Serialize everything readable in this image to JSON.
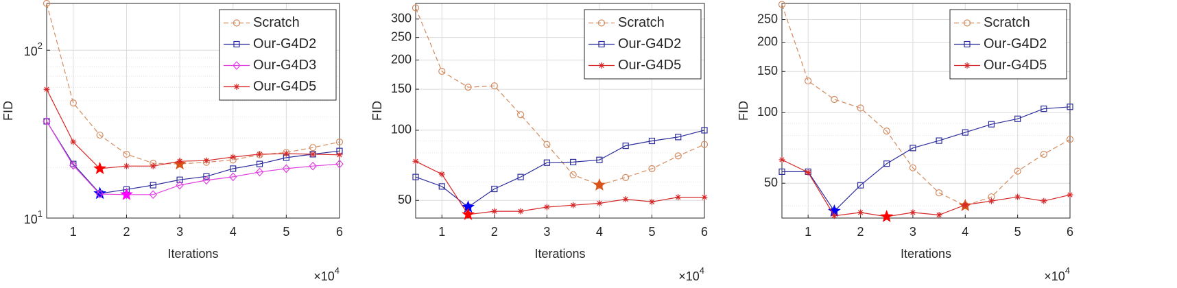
{
  "chart_data": [
    {
      "type": "line",
      "xlabel": "Iterations",
      "ylabel": "FID",
      "x_exponent_label": "×10^4",
      "x": [
        0.5,
        1,
        1.5,
        2,
        2.5,
        3,
        3.5,
        4,
        4.5,
        5,
        5.5,
        6
      ],
      "xlim": [
        0.5,
        6
      ],
      "xticks": [
        1,
        2,
        3,
        4,
        5,
        6
      ],
      "ylim": [
        10,
        190
      ],
      "yticks": [
        {
          "value": 10,
          "label": "10^1"
        },
        {
          "value": 100,
          "label": "10^2"
        }
      ],
      "yscale": "log",
      "grid": true,
      "legend": "upper right",
      "series": [
        {
          "name": "Scratch",
          "color": "#d38a5e",
          "line_style": "dashed",
          "marker": "circle",
          "star_index": 5,
          "star_color": "#d95319",
          "values": [
            190,
            48.5,
            31.2,
            24,
            21.2,
            21,
            21.5,
            22.2,
            23.8,
            24.6,
            26.3,
            28.4
          ]
        },
        {
          "name": "Our-G4D2",
          "color": "#2c2c9c",
          "line_style": "solid",
          "marker": "square",
          "star_index": 2,
          "star_color": "#0000ff",
          "values": [
            37.7,
            21,
            14,
            14.8,
            15.7,
            16.9,
            17.7,
            19.7,
            21,
            22.9,
            24,
            25.1
          ]
        },
        {
          "name": "Our-G4D3",
          "color": "#e040e0",
          "line_style": "solid",
          "marker": "diamond",
          "star_index": 3,
          "star_color": "#ff00ff",
          "values": [
            37.7,
            20.6,
            13.9,
            13.8,
            13.8,
            15.7,
            16.8,
            17.6,
            18.8,
            19.7,
            20.4,
            21
          ]
        },
        {
          "name": "Our-G4D5",
          "color": "#d62728",
          "line_style": "solid",
          "marker": "asterisk",
          "star_index": 2,
          "star_color": "#ff0000",
          "values": [
            58.5,
            28.4,
            19.7,
            20.4,
            20.4,
            21.8,
            22,
            23.1,
            24,
            24.2,
            24,
            23.8
          ]
        }
      ]
    },
    {
      "type": "line",
      "xlabel": "Iterations",
      "ylabel": "FID",
      "x_exponent_label": "×10^4",
      "x": [
        0.5,
        1,
        1.5,
        2,
        2.5,
        3,
        3.5,
        4,
        4.5,
        5,
        5.5,
        6
      ],
      "xlim": [
        0.5,
        6
      ],
      "xticks": [
        1,
        2,
        3,
        4,
        5,
        6
      ],
      "ylim": [
        42,
        350
      ],
      "yticks": [
        50,
        100,
        150,
        200,
        250,
        300
      ],
      "yscale": "log",
      "grid": true,
      "legend": "upper right",
      "series": [
        {
          "name": "Scratch",
          "color": "#d38a5e",
          "line_style": "dashed",
          "marker": "circle",
          "star_index": 7,
          "star_color": "#d95319",
          "values": [
            335,
            179,
            153,
            155,
            116.6,
            86.9,
            64.4,
            58.2,
            62.7,
            68.4,
            77.6,
            86.9
          ]
        },
        {
          "name": "Our-G4D2",
          "color": "#2c2c9c",
          "line_style": "solid",
          "marker": "square",
          "star_index": 2,
          "star_color": "#0000ff",
          "values": [
            63,
            57.4,
            46.8,
            56,
            63,
            72.6,
            73,
            74.6,
            85.8,
            90,
            93.5,
            100
          ]
        },
        {
          "name": "Our-G4D5",
          "color": "#d62728",
          "line_style": "solid",
          "marker": "asterisk",
          "star_index": 2,
          "star_color": "#ff0000",
          "values": [
            73.6,
            64.8,
            43.5,
            44.9,
            44.9,
            46.8,
            47.7,
            48.6,
            50.6,
            49.3,
            51.6,
            51.6
          ]
        }
      ]
    },
    {
      "type": "line",
      "xlabel": "Iterations",
      "ylabel": "FID",
      "x_exponent_label": "×10^4",
      "x": [
        0.5,
        1,
        1.5,
        2,
        2.5,
        3,
        3.5,
        4,
        4.5,
        5,
        5.5,
        6
      ],
      "xlim": [
        0.5,
        6
      ],
      "xticks": [
        1,
        2,
        3,
        4,
        5,
        6
      ],
      "ylim": [
        35.5,
        293
      ],
      "yticks": [
        50,
        100,
        150,
        200,
        250
      ],
      "yscale": "log",
      "grid": true,
      "legend": "upper right",
      "series": [
        {
          "name": "Scratch",
          "color": "#d38a5e",
          "line_style": "dashed",
          "marker": "circle",
          "star_index": 7,
          "star_color": "#d95319",
          "values": [
            290,
            136.8,
            114,
            104.8,
            83.5,
            58.2,
            45.5,
            40.1,
            43.7,
            56.3,
            66.5,
            77
          ]
        },
        {
          "name": "Our-G4D2",
          "color": "#2c2c9c",
          "line_style": "solid",
          "marker": "square",
          "star_index": 2,
          "star_color": "#0000ff",
          "values": [
            56,
            56,
            38,
            49,
            60.6,
            70.7,
            76,
            82.4,
            89.3,
            94.2,
            104,
            106
          ]
        },
        {
          "name": "Our-G4D5",
          "color": "#d62728",
          "line_style": "solid",
          "marker": "asterisk",
          "star_index": 4,
          "star_color": "#ff0000",
          "values": [
            63,
            55.6,
            36.3,
            37.5,
            36,
            37.5,
            36.6,
            40.4,
            42,
            43.7,
            42,
            44.6
          ]
        }
      ]
    }
  ]
}
